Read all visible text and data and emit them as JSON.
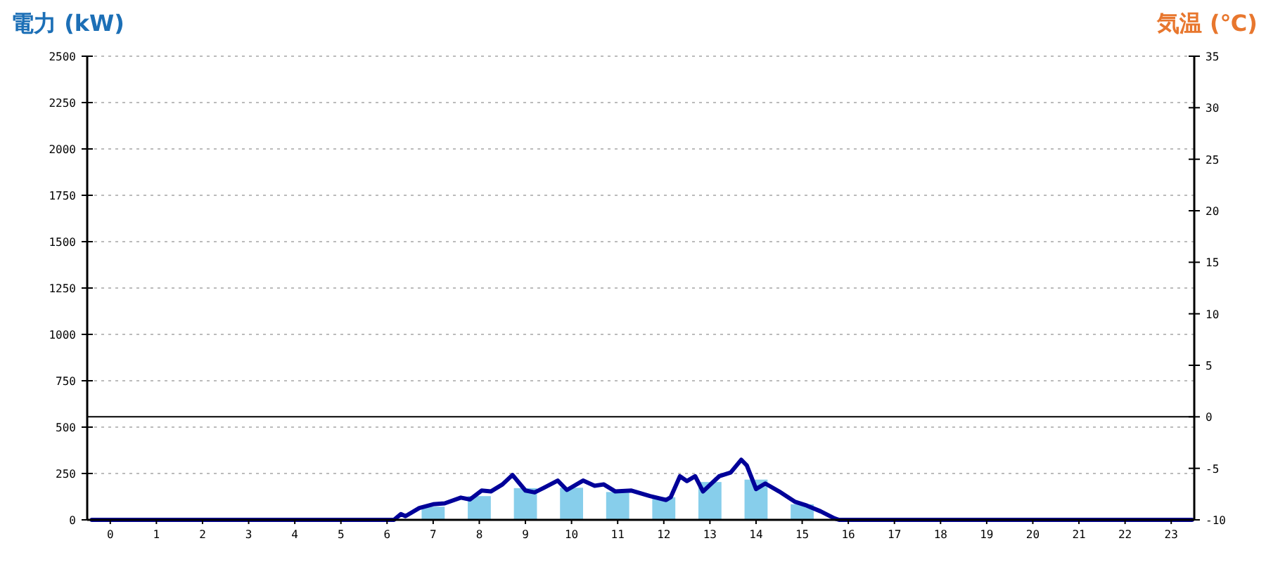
{
  "chart_data": {
    "type": "bar",
    "ylabel": "電力 (kW)",
    "y2label": "気温 (℃)",
    "x": [
      0,
      1,
      2,
      3,
      4,
      5,
      6,
      7,
      8,
      9,
      10,
      11,
      12,
      13,
      14,
      15,
      16,
      17,
      18,
      19,
      20,
      21,
      22,
      23
    ],
    "xlim": [
      -0.5,
      23.5
    ],
    "xticks": [
      0,
      1,
      2,
      3,
      4,
      5,
      6,
      7,
      8,
      9,
      10,
      11,
      12,
      13,
      14,
      15,
      16,
      17,
      18,
      19,
      20,
      21,
      22,
      23
    ],
    "series": [
      {
        "color": "#87ceeb",
        "values": [
          0,
          0,
          0,
          0,
          0,
          0,
          0,
          71,
          128,
          171,
          173,
          150,
          122,
          204,
          217,
          84,
          0,
          0,
          0,
          0,
          0,
          0,
          0,
          0
        ]
      },
      {
        "type": "line",
        "color": "#000099",
        "x": [
          -0.4,
          6.15,
          6.3,
          6.4,
          6.7,
          7.0,
          7.25,
          7.6,
          7.8,
          8.05,
          8.25,
          8.5,
          8.72,
          9.0,
          9.2,
          9.4,
          9.7,
          9.9,
          10.25,
          10.5,
          10.7,
          10.95,
          11.3,
          11.7,
          12.05,
          12.15,
          12.35,
          12.5,
          12.68,
          12.85,
          13.2,
          13.45,
          13.68,
          13.8,
          14.0,
          14.2,
          14.5,
          14.85,
          15.1,
          15.4,
          15.7,
          15.8,
          23.45
        ],
        "values": [
          0,
          0,
          31,
          20,
          64,
          84,
          89,
          120,
          110,
          158,
          153,
          191,
          242,
          158,
          148,
          173,
          212,
          161,
          212,
          184,
          191,
          153,
          158,
          128,
          107,
          122,
          235,
          209,
          235,
          153,
          235,
          255,
          324,
          293,
          166,
          196,
          153,
          97,
          77,
          46,
          8,
          0,
          0
        ]
      }
    ],
    "ylim": [
      0,
      2500
    ],
    "yticks": [
      0,
      250,
      500,
      750,
      1000,
      1250,
      1500,
      1750,
      2000,
      2250,
      2500
    ],
    "y2lim": [
      -10,
      35
    ],
    "y2ticks": [
      -10,
      -5,
      0,
      5,
      10,
      15,
      20,
      25,
      30,
      35
    ],
    "ref_lines": [
      {
        "axis": "y2",
        "value": 0,
        "color": "#000000"
      }
    ],
    "grid": "y"
  }
}
